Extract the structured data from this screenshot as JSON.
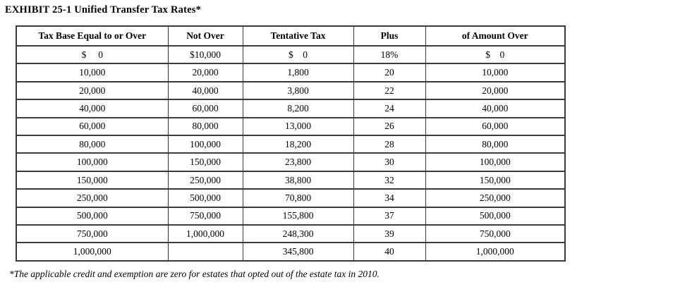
{
  "title": "EXHIBIT 25-1 Unified Transfer Tax Rates*",
  "footnote": "*The applicable credit and exemption are zero for estates that opted out of the estate tax in 2010.",
  "table": {
    "headers": [
      "Tax Base Equal to or Over",
      "Not Over",
      "Tentative Tax",
      "Plus",
      "of Amount Over"
    ],
    "rows": [
      [
        "$     0",
        "$10,000",
        "$    0",
        "18%",
        "$    0"
      ],
      [
        "10,000",
        "20,000",
        "1,800",
        "20",
        "10,000"
      ],
      [
        "20,000",
        "40,000",
        "3,800",
        "22",
        "20,000"
      ],
      [
        "40,000",
        "60,000",
        "8,200",
        "24",
        "40,000"
      ],
      [
        "60,000",
        "80,000",
        "13,000",
        "26",
        "60,000"
      ],
      [
        "80,000",
        "100,000",
        "18,200",
        "28",
        "80,000"
      ],
      [
        "100,000",
        "150,000",
        "23,800",
        "30",
        "100,000"
      ],
      [
        "150,000",
        "250,000",
        "38,800",
        "32",
        "150,000"
      ],
      [
        "250,000",
        "500,000",
        "70,800",
        "34",
        "250,000"
      ],
      [
        "500,000",
        "750,000",
        "155,800",
        "37",
        "500,000"
      ],
      [
        "750,000",
        "1,000,000",
        "248,300",
        "39",
        "750,000"
      ],
      [
        "1,000,000",
        "",
        "345,800",
        "40",
        "1,000,000"
      ]
    ]
  },
  "colors": {
    "border": "#3a3a3a",
    "text": "#000000",
    "background": "#ffffff"
  }
}
